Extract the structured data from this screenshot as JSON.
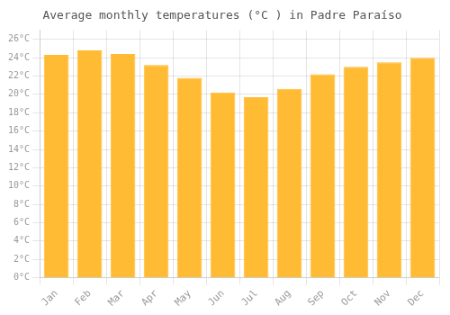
{
  "chart_data": {
    "type": "bar",
    "title": "Average monthly temperatures (°C ) in Padre Paraíso",
    "categories": [
      "Jan",
      "Feb",
      "Mar",
      "Apr",
      "May",
      "Jun",
      "Jul",
      "Aug",
      "Sep",
      "Oct",
      "Nov",
      "Dec"
    ],
    "values": [
      24.3,
      24.8,
      24.4,
      23.2,
      21.8,
      20.2,
      19.7,
      20.6,
      22.2,
      23.0,
      23.5,
      24.0
    ],
    "color": "#FFBB33",
    "ylim": [
      0,
      27
    ],
    "yticks": [
      {
        "value": 0,
        "label": "0°C"
      },
      {
        "value": 2,
        "label": "2°C"
      },
      {
        "value": 4,
        "label": "4°C"
      },
      {
        "value": 6,
        "label": "6°C"
      },
      {
        "value": 8,
        "label": "8°C"
      },
      {
        "value": 10,
        "label": "10°C"
      },
      {
        "value": 12,
        "label": "12°C"
      },
      {
        "value": 14,
        "label": "14°C"
      },
      {
        "value": 16,
        "label": "16°C"
      },
      {
        "value": 18,
        "label": "18°C"
      },
      {
        "value": 20,
        "label": "20°C"
      },
      {
        "value": 22,
        "label": "22°C"
      },
      {
        "value": 24,
        "label": "24°C"
      },
      {
        "value": 26,
        "label": "26°C"
      }
    ],
    "grid": true
  }
}
